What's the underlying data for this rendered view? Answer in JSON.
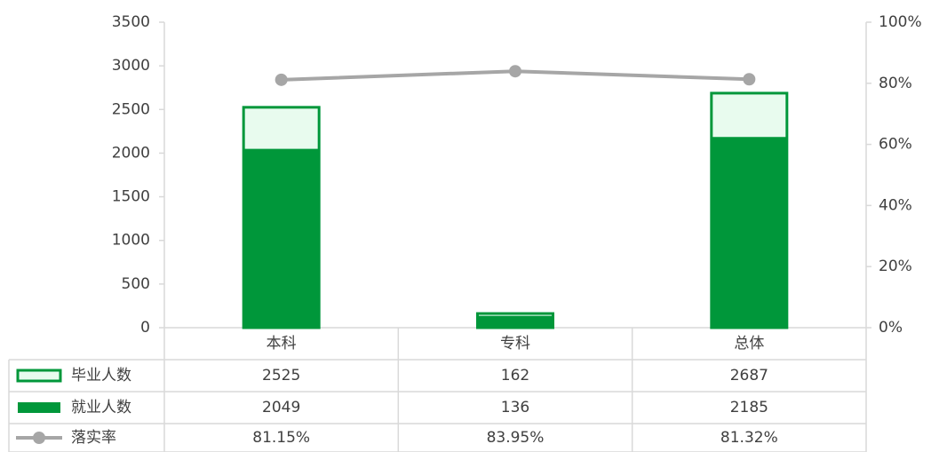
{
  "chart_data": {
    "type": "bar",
    "categories": [
      "本科",
      "专科",
      "总体"
    ],
    "series": [
      {
        "name": "毕业人数",
        "color": "#00973a",
        "fill": "#e8fbee",
        "values": [
          2525,
          162,
          2687
        ]
      },
      {
        "name": "就业人数",
        "color": "#00973a",
        "values": [
          2049,
          136,
          2185
        ]
      },
      {
        "name": "落实率",
        "color": "#a6a6a6",
        "type": "line",
        "axis": "y2",
        "values": [
          81.15,
          83.95,
          81.32
        ],
        "value_labels": [
          "81.15%",
          "83.95%",
          "81.32%"
        ]
      }
    ],
    "ylim": [
      0,
      3500
    ],
    "yticks": [
      0,
      500,
      1000,
      1500,
      2000,
      2500,
      3000,
      3500
    ],
    "y2lim": [
      0,
      100
    ],
    "y2ticks": [
      {
        "value": 0,
        "label": "0%"
      },
      {
        "value": 20,
        "label": "20%"
      },
      {
        "value": 40,
        "label": "40%"
      },
      {
        "value": 60,
        "label": "60%"
      },
      {
        "value": 80,
        "label": "80%"
      },
      {
        "value": 100,
        "label": "100%"
      }
    ]
  }
}
